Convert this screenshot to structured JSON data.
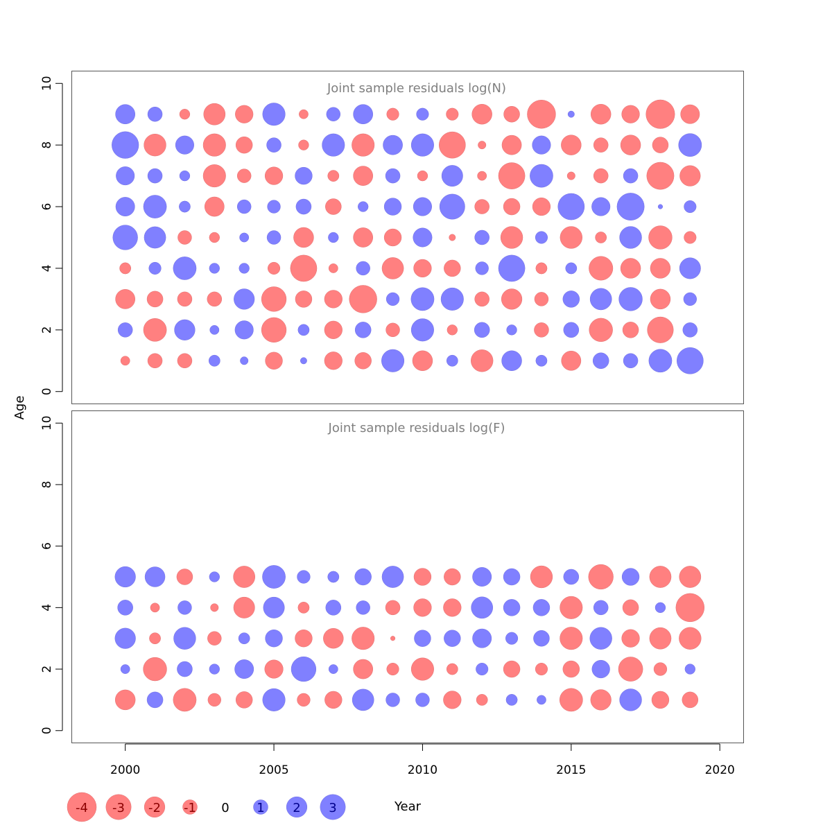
{
  "chart_data": {
    "type": "bubble",
    "xlabel": "Year",
    "ylabel": "Age",
    "xlim": [
      1998.2,
      2020.8
    ],
    "ylim": [
      -0.4,
      10.4
    ],
    "x_ticks": [
      2000,
      2005,
      2010,
      2015,
      2020
    ],
    "y_ticks": [
      0,
      2,
      4,
      6,
      8,
      10
    ],
    "years": [
      2000,
      2001,
      2002,
      2003,
      2004,
      2005,
      2006,
      2007,
      2008,
      2009,
      2010,
      2011,
      2012,
      2013,
      2014,
      2015,
      2016,
      2017,
      2018,
      2019
    ],
    "colors": {
      "positive": "#8080ff",
      "negative": "#ff8080",
      "positive_text": "#00008b",
      "negative_text": "#8b0000",
      "zero_text": "#000000"
    },
    "legend": {
      "values": [
        -4,
        -3,
        -2,
        -1,
        0,
        1,
        2,
        3
      ],
      "labels": [
        "-4",
        "-3",
        "-2",
        "-1",
        "0",
        "1",
        "2",
        "3"
      ]
    },
    "panels": [
      {
        "title": "Joint sample residuals log(N)",
        "ages": [
          1,
          2,
          3,
          4,
          5,
          6,
          7,
          8,
          9
        ],
        "residuals": [
          [
            -0.4,
            1.0,
            -1.8,
            -0.6,
            2.9,
            1.7,
            1.6,
            3.4,
            1.8
          ],
          [
            -1.0,
            -2.5,
            -1.2,
            0.7,
            2.2,
            2.5,
            1.0,
            -2.3,
            1.0
          ],
          [
            -1.0,
            2.0,
            -1.0,
            2.5,
            -0.9,
            0.6,
            0.5,
            1.6,
            -0.5
          ],
          [
            0.6,
            0.4,
            -1.0,
            0.5,
            -0.5,
            -1.8,
            -2.4,
            -2.4,
            -2.2
          ],
          [
            0.3,
            1.6,
            2.0,
            0.5,
            0.4,
            0.9,
            -0.9,
            -1.3,
            -1.5
          ],
          [
            -1.4,
            -2.9,
            -2.9,
            -0.7,
            0.9,
            0.8,
            -1.5,
            1.0,
            2.4
          ],
          [
            0.2,
            0.6,
            -1.3,
            -3.3,
            -1.9,
            1.1,
            1.4,
            -0.5,
            -0.4
          ],
          [
            -1.5,
            -1.5,
            -1.5,
            -0.4,
            0.5,
            -1.2,
            -0.6,
            2.4,
            0.9
          ],
          [
            -1.3,
            1.2,
            -3.6,
            0.9,
            -1.8,
            0.5,
            -1.8,
            -2.4,
            1.8
          ],
          [
            2.4,
            -0.9,
            0.8,
            -2.2,
            -1.4,
            1.4,
            1.0,
            1.8,
            -0.7
          ],
          [
            -1.9,
            2.4,
            2.5,
            -1.5,
            1.7,
            1.6,
            -0.5,
            2.4,
            0.7
          ],
          [
            0.6,
            -0.5,
            2.4,
            -1.3,
            -0.2,
            3.0,
            2.1,
            -3.3,
            -0.7
          ],
          [
            -2.3,
            1.1,
            -1.0,
            0.8,
            1.0,
            -1.0,
            -0.4,
            -0.3,
            -1.9
          ],
          [
            1.9,
            0.5,
            -2.0,
            3.3,
            -2.3,
            -1.3,
            -3.3,
            -1.8,
            -1.2
          ],
          [
            0.6,
            -1.0,
            -0.9,
            -0.6,
            0.7,
            -1.5,
            2.5,
            1.6,
            -3.8
          ],
          [
            -1.8,
            1.1,
            1.3,
            0.6,
            -2.3,
            3.3,
            -0.3,
            -1.9,
            0.2
          ],
          [
            1.2,
            -2.6,
            2.2,
            -2.7,
            -0.6,
            1.6,
            -1.0,
            -1.0,
            -1.9
          ],
          [
            1.0,
            -1.2,
            2.6,
            -1.9,
            2.3,
            3.5,
            1.0,
            -1.9,
            -1.5
          ],
          [
            2.5,
            -3.2,
            -1.9,
            -1.9,
            -2.6,
            0.1,
            -3.5,
            -1.2,
            -3.9
          ],
          [
            3.3,
            1.0,
            0.8,
            2.1,
            -0.7,
            0.7,
            -2.0,
            2.5,
            -1.7
          ]
        ]
      },
      {
        "title": "Joint sample residuals log(F)",
        "ages": [
          1,
          2,
          3,
          4,
          5
        ],
        "residuals": [
          [
            -1.9,
            0.4,
            2.0,
            1.1,
            2.0
          ],
          [
            1.2,
            -2.6,
            -0.6,
            -0.4,
            1.9
          ],
          [
            -2.5,
            1.1,
            2.3,
            0.9,
            -1.2
          ],
          [
            -0.8,
            0.5,
            -0.9,
            -0.3,
            0.5
          ],
          [
            -1.3,
            1.7,
            0.6,
            -2.1,
            -2.2
          ],
          [
            2.4,
            -1.6,
            1.4,
            2.1,
            2.5
          ],
          [
            -0.8,
            2.9,
            -1.4,
            -0.6,
            0.8
          ],
          [
            -1.4,
            0.4,
            -1.9,
            1.1,
            0.6
          ],
          [
            2.2,
            -1.8,
            -2.4,
            0.9,
            1.3
          ],
          [
            0.9,
            -0.7,
            -0.1,
            -1.0,
            2.2
          ],
          [
            0.9,
            -2.4,
            1.3,
            -1.5,
            -1.4
          ],
          [
            -1.5,
            -0.6,
            1.3,
            -1.5,
            -1.3
          ],
          [
            -0.6,
            0.7,
            1.7,
            2.2,
            1.7
          ],
          [
            0.6,
            -1.3,
            0.7,
            1.3,
            1.3
          ],
          [
            0.4,
            -0.7,
            1.2,
            1.3,
            -2.3
          ],
          [
            -2.5,
            -1.3,
            -2.4,
            -2.4,
            1.1
          ],
          [
            -2.0,
            1.5,
            2.3,
            1.0,
            -2.9
          ],
          [
            2.3,
            -2.8,
            -1.5,
            -1.2,
            1.4
          ],
          [
            -1.4,
            -0.8,
            -2.2,
            0.5,
            -2.2
          ],
          [
            -1.2,
            0.5,
            -2.3,
            -3.8,
            -2.2
          ]
        ]
      }
    ]
  }
}
